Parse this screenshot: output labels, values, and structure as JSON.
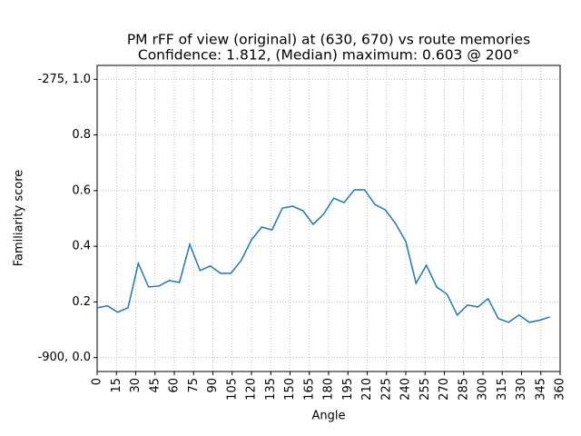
{
  "chart_data": {
    "type": "line",
    "title": "PM rFF of view (original) at (630, 670) vs route memories",
    "subtitle": "Confidence: 1.812, (Median) maximum: 0.603 @ 200°",
    "x_label": "Angle",
    "y_label": "Familiarity score",
    "x": [
      0,
      8,
      16,
      24,
      32,
      40,
      48,
      56,
      64,
      72,
      80,
      88,
      96,
      104,
      112,
      120,
      128,
      136,
      144,
      152,
      160,
      168,
      176,
      184,
      192,
      200,
      208,
      216,
      224,
      232,
      240,
      248,
      256,
      264,
      272,
      280,
      288,
      296,
      304,
      312,
      320,
      328,
      336,
      344,
      352
    ],
    "series": [
      {
        "name": "familiarity",
        "color": "#1f77b4",
        "values": [
          0.179,
          0.186,
          0.163,
          0.179,
          0.339,
          0.254,
          0.257,
          0.277,
          0.27,
          0.407,
          0.313,
          0.329,
          0.303,
          0.303,
          0.349,
          0.423,
          0.469,
          0.459,
          0.537,
          0.544,
          0.528,
          0.479,
          0.515,
          0.573,
          0.557,
          0.603,
          0.603,
          0.55,
          0.531,
          0.482,
          0.417,
          0.267,
          0.332,
          0.254,
          0.228,
          0.153,
          0.189,
          0.182,
          0.212,
          0.14,
          0.127,
          0.153,
          0.127,
          0.134,
          0.146
        ]
      }
    ],
    "xlim": [
      0,
      360
    ],
    "xticks": [
      0,
      15,
      30,
      45,
      60,
      75,
      90,
      105,
      120,
      135,
      150,
      165,
      180,
      195,
      210,
      225,
      240,
      255,
      270,
      285,
      300,
      315,
      330,
      345,
      360
    ],
    "ylim": [
      -0.05,
      1.05
    ],
    "yticks": [
      {
        "value": 0,
        "label": "-900, 0.0"
      },
      0.2,
      0.4,
      0.6,
      0.8,
      {
        "value": 1,
        "label": "-275, 1.0"
      }
    ],
    "grid": true
  }
}
